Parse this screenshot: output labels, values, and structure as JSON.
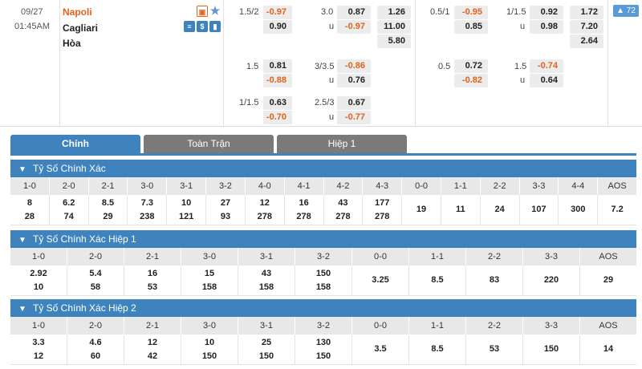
{
  "match": {
    "date": "09/27",
    "time": "01:45AM",
    "home": "Napoli",
    "away": "Cagliari",
    "draw": "Hòa",
    "icons": [
      "live-stream-icon",
      "favorite-star-icon",
      "stats-icon",
      "dollar-icon",
      "chart-icon"
    ],
    "more_count": "72"
  },
  "odds": {
    "ft_handicap": [
      {
        "line": "1.5/2",
        "home": "-0.97",
        "away": "0.90"
      },
      {
        "line": "1.5",
        "home": "0.81",
        "away": "-0.88"
      },
      {
        "line": "1/1.5",
        "home": "0.63",
        "away": "-0.70"
      }
    ],
    "ft_total": [
      {
        "line": "3.0",
        "over": "0.87",
        "u": "u",
        "under": "-0.97"
      },
      {
        "line": "3/3.5",
        "over": "-0.86",
        "u": "u",
        "under": "0.76"
      },
      {
        "line": "2.5/3",
        "over": "0.67",
        "u": "u",
        "under": "-0.77"
      }
    ],
    "ft_1x2": [
      "1.26",
      "11.00",
      "5.80"
    ],
    "h1_handicap": [
      {
        "line": "0.5/1",
        "home": "-0.95",
        "away": "0.85"
      },
      {
        "line": "0.5",
        "home": "0.72",
        "away": "-0.82"
      }
    ],
    "h1_total": [
      {
        "line": "1/1.5",
        "over": "0.92",
        "u": "u",
        "under": "0.98"
      },
      {
        "line": "1.5",
        "over": "-0.74",
        "u": "u",
        "under": "0.64"
      }
    ],
    "h1_1x2": [
      "1.72",
      "7.20",
      "2.64"
    ]
  },
  "tabs": [
    "Chính",
    "Toàn Trận",
    "Hiệp 1"
  ],
  "sections": [
    {
      "title": "Tỷ Số Chính Xác",
      "headers": [
        "1-0",
        "2-0",
        "2-1",
        "3-0",
        "3-1",
        "3-2",
        "4-0",
        "4-1",
        "4-2",
        "4-3",
        "0-0",
        "1-1",
        "2-2",
        "3-3",
        "4-4",
        "AOS"
      ],
      "values": [
        [
          "8",
          "28"
        ],
        [
          "6.2",
          "74"
        ],
        [
          "8.5",
          "29"
        ],
        [
          "7.3",
          "238"
        ],
        [
          "10",
          "121"
        ],
        [
          "27",
          "93"
        ],
        [
          "12",
          "278"
        ],
        [
          "16",
          "278"
        ],
        [
          "43",
          "278"
        ],
        [
          "177",
          "278"
        ],
        [
          "19"
        ],
        [
          "11"
        ],
        [
          "24"
        ],
        [
          "107"
        ],
        [
          "300"
        ],
        [
          "7.2"
        ]
      ]
    },
    {
      "title": "Tỷ Số Chính Xác Hiệp 1",
      "headers": [
        "1-0",
        "2-0",
        "2-1",
        "3-0",
        "3-1",
        "3-2",
        "0-0",
        "1-1",
        "2-2",
        "3-3",
        "AOS"
      ],
      "values": [
        [
          "2.92",
          "10"
        ],
        [
          "5.4",
          "58"
        ],
        [
          "16",
          "53"
        ],
        [
          "15",
          "158"
        ],
        [
          "43",
          "158"
        ],
        [
          "150",
          "158"
        ],
        [
          "3.25"
        ],
        [
          "8.5"
        ],
        [
          "83"
        ],
        [
          "220"
        ],
        [
          "29"
        ]
      ]
    },
    {
      "title": "Tỷ Số Chính Xác Hiệp 2",
      "headers": [
        "1-0",
        "2-0",
        "2-1",
        "3-0",
        "3-1",
        "3-2",
        "0-0",
        "1-1",
        "2-2",
        "3-3",
        "AOS"
      ],
      "values": [
        [
          "3.3",
          "12"
        ],
        [
          "4.6",
          "60"
        ],
        [
          "12",
          "42"
        ],
        [
          "10",
          "150"
        ],
        [
          "25",
          "150"
        ],
        [
          "130",
          "150"
        ],
        [
          "3.5"
        ],
        [
          "8.5"
        ],
        [
          "53"
        ],
        [
          "150"
        ],
        [
          "14"
        ]
      ]
    }
  ]
}
